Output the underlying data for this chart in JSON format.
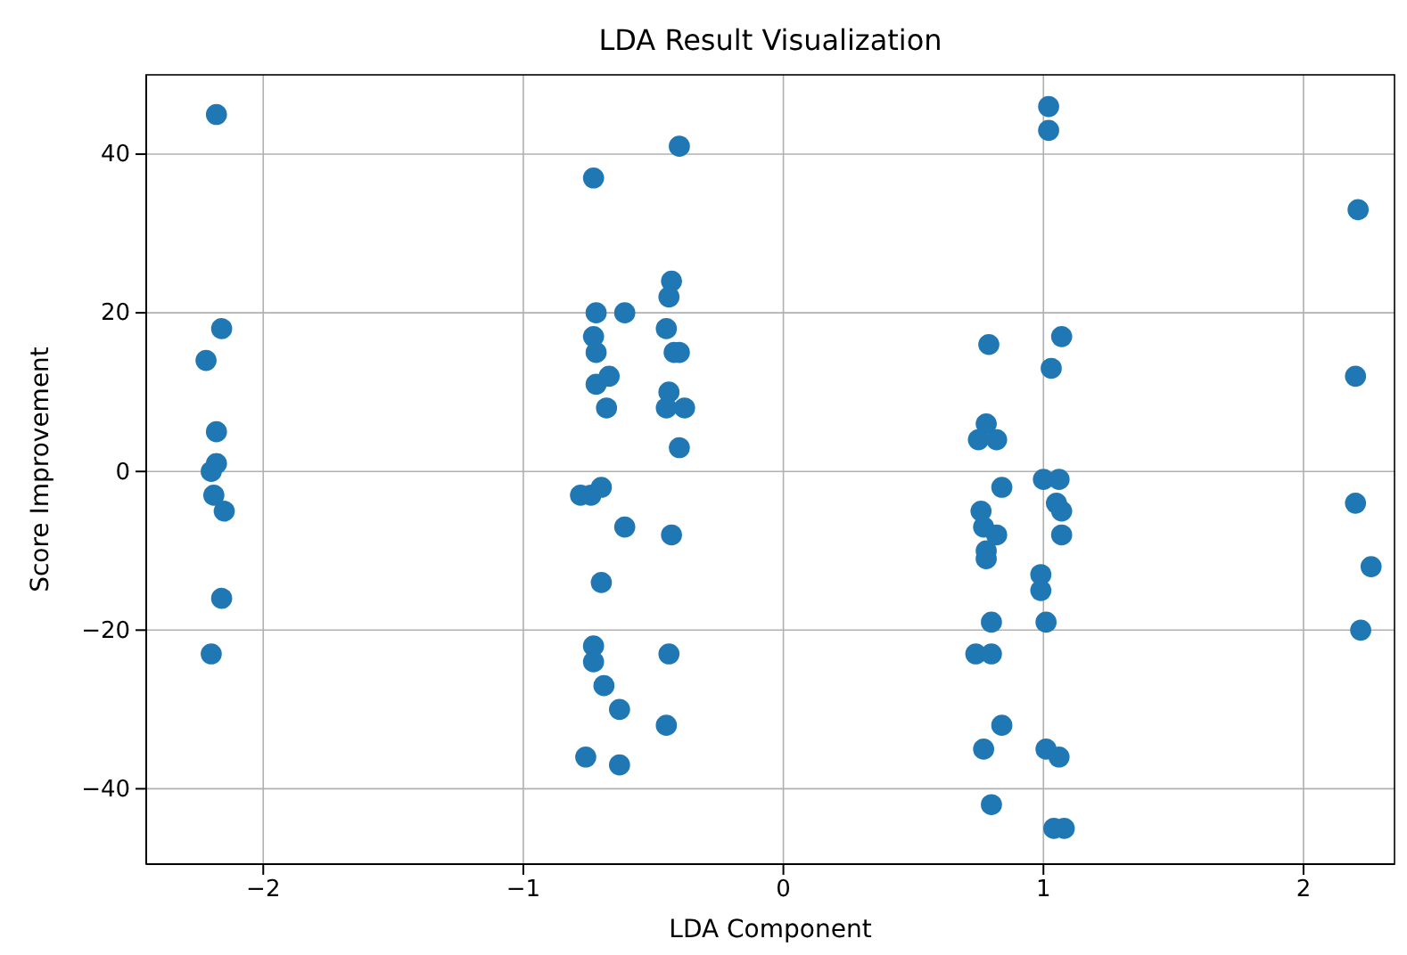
{
  "chart_data": {
    "type": "scatter",
    "title": "LDA Result Visualization",
    "xlabel": "LDA Component",
    "ylabel": "Score Improvement",
    "xlim": [
      -2.45,
      2.35
    ],
    "ylim": [
      -49.5,
      50
    ],
    "xticks": [
      {
        "value": -2,
        "label": "−2"
      },
      {
        "value": -1,
        "label": "−1"
      },
      0,
      1,
      2
    ],
    "yticks": [
      {
        "value": -40,
        "label": "−40"
      },
      {
        "value": -20,
        "label": "−20"
      },
      0,
      20,
      40
    ],
    "grid": true,
    "marker": "circle",
    "series": [
      {
        "color": "#1f77b4",
        "x": [
          -2.18,
          -2.16,
          -2.22,
          -2.18,
          -2.18,
          -2.2,
          -2.19,
          -2.15,
          -2.16,
          -2.2,
          -0.4,
          -0.73,
          -0.72,
          -0.61,
          -0.43,
          -0.44,
          -0.45,
          -0.42,
          -0.4,
          -0.73,
          -0.72,
          -0.72,
          -0.67,
          -0.68,
          -0.44,
          -0.45,
          -0.38,
          -0.4,
          -0.78,
          -0.74,
          -0.7,
          -0.61,
          -0.43,
          -0.7,
          -0.73,
          -0.73,
          -0.69,
          -0.63,
          -0.44,
          -0.45,
          -0.76,
          -0.63,
          1.02,
          1.02,
          0.79,
          1.07,
          1.03,
          0.78,
          0.75,
          0.82,
          0.84,
          1.0,
          1.06,
          1.05,
          1.07,
          1.07,
          0.76,
          0.77,
          0.82,
          0.78,
          0.78,
          0.99,
          0.99,
          0.8,
          1.01,
          0.74,
          0.8,
          0.84,
          0.77,
          1.01,
          1.06,
          0.8,
          1.04,
          1.08,
          2.21,
          2.2,
          2.2,
          2.26,
          2.22
        ],
        "values": [
          45,
          18,
          14,
          5,
          1,
          0,
          -3,
          -5,
          -16,
          -23,
          41,
          37,
          20,
          20,
          24,
          22,
          18,
          15,
          15,
          17,
          15,
          11,
          12,
          8,
          10,
          8,
          8,
          3,
          -3,
          -3,
          -2,
          -7,
          -8,
          -14,
          -22,
          -24,
          -27,
          -30,
          -23,
          -32,
          -36,
          -37,
          46,
          43,
          16,
          17,
          13,
          6,
          4,
          4,
          -2,
          -1,
          -1,
          -4,
          -5,
          -8,
          -5,
          -7,
          -8,
          -10,
          -11,
          -13,
          -15,
          -19,
          -19,
          -23,
          -23,
          -32,
          -35,
          -35,
          -36,
          -42,
          -45,
          -45,
          33,
          12,
          -4,
          -12,
          -20
        ]
      }
    ]
  }
}
